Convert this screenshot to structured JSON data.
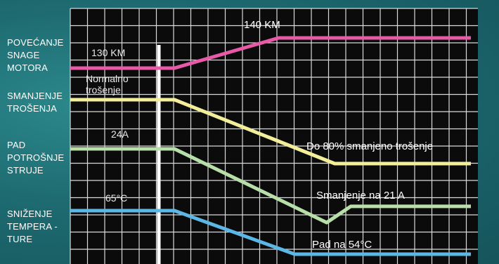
{
  "side_labels": {
    "engine_power": "POVEĆANJE\nSNAGE\nMOTORA",
    "wear_reduction": "SMANJENJE\nTROŠENJA",
    "current_drop": "PAD\nPOTROŠNJE\nSTRUJE",
    "temperature_drop": "SNIŽENJE\nTEMPERA -\nTURE"
  },
  "chart_data": {
    "type": "line",
    "grid": true,
    "series": [
      {
        "key": "power",
        "color": "#e85aa8",
        "points": [
          [
            0,
            0
          ],
          [
            0.26,
            0
          ],
          [
            0.52,
            1
          ],
          [
            1,
            1
          ]
        ],
        "start_label": "130 KM",
        "end_label": "140 KM"
      },
      {
        "key": "wear",
        "color": "#f2ee9a",
        "points": [
          [
            0,
            0
          ],
          [
            0.26,
            0
          ],
          [
            0.66,
            1
          ],
          [
            1,
            1
          ]
        ],
        "start_label": "Normalno\ntrošenje",
        "end_label": "Do 80% smanjeno trošenje"
      },
      {
        "key": "current",
        "color": "#b8dfaa",
        "points": [
          [
            0,
            0
          ],
          [
            0.26,
            0
          ],
          [
            0.64,
            1
          ],
          [
            0.7,
            0.78
          ],
          [
            1,
            0.78
          ]
        ],
        "start_label": "24A",
        "end_label": "Smanjenje na 21 A"
      },
      {
        "key": "temperature",
        "color": "#5bb8e6",
        "points": [
          [
            0,
            0
          ],
          [
            0.26,
            0
          ],
          [
            0.56,
            1
          ],
          [
            1,
            1
          ]
        ],
        "start_label": "65°C",
        "end_label": "Pad na 54°C"
      }
    ]
  }
}
